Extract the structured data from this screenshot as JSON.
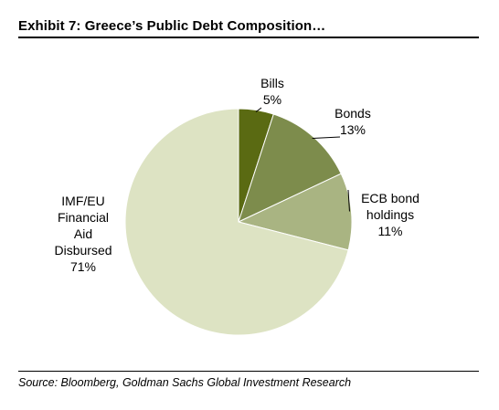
{
  "header": {
    "title": "Exhibit 7: Greece’s Public Debt Composition…"
  },
  "footer": {
    "source": "Source: Bloomberg, Goldman Sachs Global Investment Research"
  },
  "chart_data": {
    "type": "pie",
    "title": "Exhibit 7: Greece’s Public Debt Composition…",
    "slices": [
      {
        "label_lines": [
          "Bills"
        ],
        "value": 5,
        "value_label": "5%",
        "color": "#5a6a12"
      },
      {
        "label_lines": [
          "Bonds"
        ],
        "value": 13,
        "value_label": "13%",
        "color": "#7d8c4c"
      },
      {
        "label_lines": [
          "ECB bond",
          "holdings"
        ],
        "value": 11,
        "value_label": "11%",
        "color": "#a9b482"
      },
      {
        "label_lines": [
          "IMF/EU",
          "Financial",
          "Aid",
          "Disbursed"
        ],
        "value": 71,
        "value_label": "71%",
        "color": "#dde3c3"
      }
    ]
  }
}
